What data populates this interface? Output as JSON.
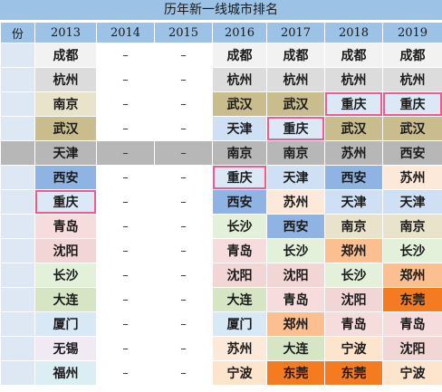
{
  "title": "历年新一线城市排名",
  "header": {
    "first_col": "份",
    "years": [
      "2013",
      "2014",
      "2015",
      "2016",
      "2017",
      "2018",
      "2019"
    ]
  },
  "dash": "–",
  "rows": [
    {
      "y2013": {
        "name": "成都",
        "color": "#f2f2f2"
      },
      "y2016": {
        "name": "成都",
        "color": "#f2f2f2"
      },
      "y2017": {
        "name": "成都",
        "color": "#f2f2f2"
      },
      "y2018": {
        "name": "成都",
        "color": "#f2f2f2"
      },
      "y2019": {
        "name": "成都",
        "color": "#f2f2f2"
      }
    },
    {
      "y2013": {
        "name": "杭州",
        "color": "#dcdcdc"
      },
      "y2016": {
        "name": "杭州",
        "color": "#dcdcdc"
      },
      "y2017": {
        "name": "杭州",
        "color": "#dcdcdc"
      },
      "y2018": {
        "name": "杭州",
        "color": "#dcdcdc"
      },
      "y2019": {
        "name": "杭州",
        "color": "#dcdcdc"
      }
    },
    {
      "y2013": {
        "name": "南京",
        "color": "#e9e3cc"
      },
      "y2016": {
        "name": "武汉",
        "color": "#c9bd8e"
      },
      "y2017": {
        "name": "武汉",
        "color": "#c9bd8e"
      },
      "y2018": {
        "name": "重庆",
        "color": "#dbe8f6",
        "highlight": true
      },
      "y2019": {
        "name": "重庆",
        "color": "#dbe8f6",
        "highlight": true
      }
    },
    {
      "y2013": {
        "name": "武汉",
        "color": "#c9bd8e"
      },
      "y2016": {
        "name": "天津",
        "color": "#cfe0f4"
      },
      "y2017": {
        "name": "重庆",
        "color": "#dbe8f6",
        "highlight": true
      },
      "y2018": {
        "name": "武汉",
        "color": "#c9bd8e"
      },
      "y2019": {
        "name": "武汉",
        "color": "#c9bd8e"
      }
    },
    {
      "grey": true,
      "y2013": {
        "name": "天津",
        "color": "#b7b7b7"
      },
      "y2016": {
        "name": "南京",
        "color": "#b7b7b7"
      },
      "y2017": {
        "name": "南京",
        "color": "#b7b7b7"
      },
      "y2018": {
        "name": "苏州",
        "color": "#b7b7b7"
      },
      "y2019": {
        "name": "西安",
        "color": "#b7b7b7"
      }
    },
    {
      "y2013": {
        "name": "西安",
        "color": "#8fb4e3"
      },
      "y2016": {
        "name": "重庆",
        "color": "#dbe8f6",
        "highlight": true
      },
      "y2017": {
        "name": "天津",
        "color": "#cfe0f4"
      },
      "y2018": {
        "name": "西安",
        "color": "#8fb4e3"
      },
      "y2019": {
        "name": "苏州",
        "color": "#fde9d9"
      }
    },
    {
      "y2013": {
        "name": "重庆",
        "color": "#dbe8f6",
        "highlight": true
      },
      "y2016": {
        "name": "西安",
        "color": "#8fb4e3"
      },
      "y2017": {
        "name": "苏州",
        "color": "#fde9d9"
      },
      "y2018": {
        "name": "天津",
        "color": "#cfe0f4"
      },
      "y2019": {
        "name": "天津",
        "color": "#cfe0f4"
      }
    },
    {
      "y2013": {
        "name": "青岛",
        "color": "#f6dcdc"
      },
      "y2016": {
        "name": "长沙",
        "color": "#e3f0da"
      },
      "y2017": {
        "name": "西安",
        "color": "#8fb4e3"
      },
      "y2018": {
        "name": "南京",
        "color": "#e9e3cc"
      },
      "y2019": {
        "name": "南京",
        "color": "#e9e3cc"
      }
    },
    {
      "y2013": {
        "name": "沈阳",
        "color": "#f2d5d5"
      },
      "y2016": {
        "name": "青岛",
        "color": "#f6dcdc"
      },
      "y2017": {
        "name": "长沙",
        "color": "#e3f0da"
      },
      "y2018": {
        "name": "郑州",
        "color": "#fbbf90"
      },
      "y2019": {
        "name": "长沙",
        "color": "#e3f0da"
      }
    },
    {
      "y2013": {
        "name": "长沙",
        "color": "#e3f0da"
      },
      "y2016": {
        "name": "沈阳",
        "color": "#f2d5d5"
      },
      "y2017": {
        "name": "沈阳",
        "color": "#f2d5d5"
      },
      "y2018": {
        "name": "长沙",
        "color": "#e3f0da"
      },
      "y2019": {
        "name": "郑州",
        "color": "#fbbf90"
      }
    },
    {
      "y2013": {
        "name": "大连",
        "color": "#d6e6c4"
      },
      "y2016": {
        "name": "大连",
        "color": "#d6e6c4"
      },
      "y2017": {
        "name": "青岛",
        "color": "#f6dcdc"
      },
      "y2018": {
        "name": "沈阳",
        "color": "#f2d5d5"
      },
      "y2019": {
        "name": "东莞",
        "color": "#f47b20"
      }
    },
    {
      "y2013": {
        "name": "厦门",
        "color": "#d9e8f5"
      },
      "y2016": {
        "name": "厦门",
        "color": "#d9e8f5"
      },
      "y2017": {
        "name": "郑州",
        "color": "#fbbf90"
      },
      "y2018": {
        "name": "青岛",
        "color": "#f6dcdc"
      },
      "y2019": {
        "name": "青岛",
        "color": "#f6dcdc"
      }
    },
    {
      "y2013": {
        "name": "无锡",
        "color": "#f1eaf5"
      },
      "y2016": {
        "name": "苏州",
        "color": "#fde9d9"
      },
      "y2017": {
        "name": "大连",
        "color": "#d6e6c4"
      },
      "y2018": {
        "name": "宁波",
        "color": "#fde4cc"
      },
      "y2019": {
        "name": "沈阳",
        "color": "#f2d5d5"
      }
    },
    {
      "y2013": {
        "name": "福州",
        "color": "#daeef3"
      },
      "y2016": {
        "name": "宁波",
        "color": "#fde4cc"
      },
      "y2017": {
        "name": "东莞",
        "color": "#f47b20"
      },
      "y2018": {
        "name": "东莞",
        "color": "#f47b20"
      },
      "y2019": {
        "name": "宁波",
        "color": "#fde4cc"
      }
    }
  ]
}
